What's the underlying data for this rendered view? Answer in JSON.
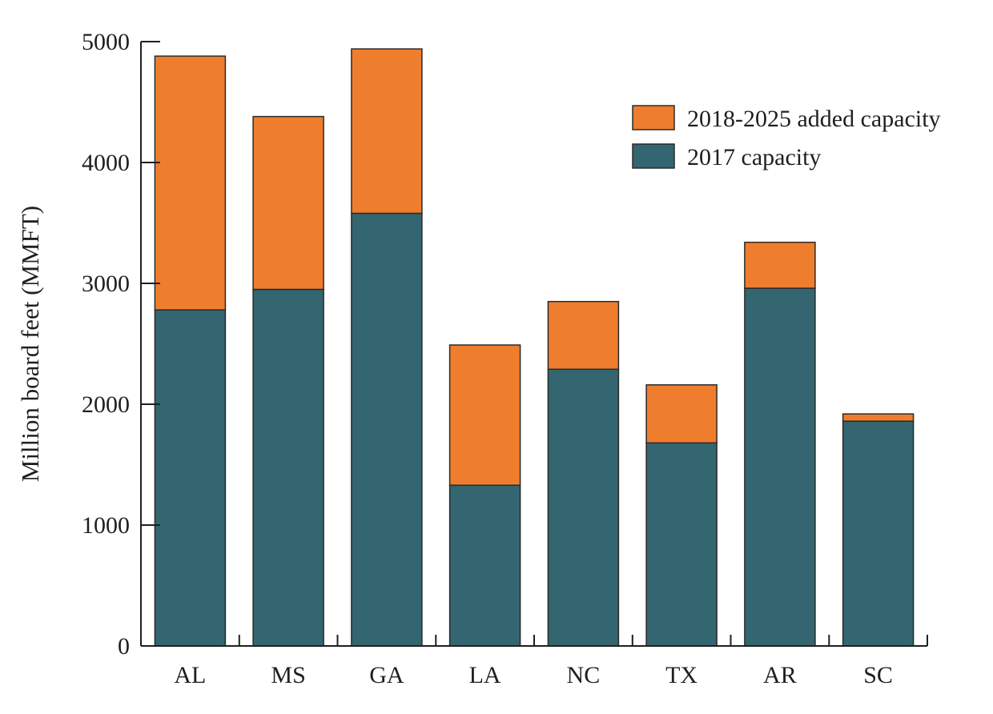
{
  "chart_data": {
    "type": "bar",
    "stacked": true,
    "categories": [
      "AL",
      "MS",
      "GA",
      "LA",
      "NC",
      "TX",
      "AR",
      "SC"
    ],
    "series": [
      {
        "name": "2017 capacity",
        "color": "#336670",
        "values": [
          2780,
          2950,
          3580,
          1330,
          2290,
          1680,
          2960,
          1860
        ]
      },
      {
        "name": "2018-2025 added capacity",
        "color": "#ef7d2e",
        "values": [
          2100,
          1430,
          1360,
          1160,
          560,
          480,
          380,
          60
        ]
      }
    ],
    "ylabel": "Million board feet (MMFT)",
    "xlabel": "",
    "ylim": [
      0,
      5000
    ],
    "yticks": [
      "0",
      "1000",
      "2000",
      "3000",
      "4000",
      "5000"
    ],
    "legend": {
      "position": "top-right",
      "order": [
        "2018-2025 added capacity",
        "2017 capacity"
      ]
    },
    "grid": false
  }
}
